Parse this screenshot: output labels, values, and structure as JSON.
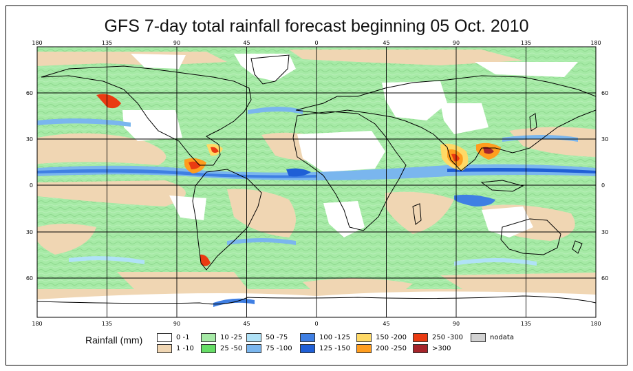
{
  "title": "GFS 7-day total rainfall forecast beginning 05 Oct. 2010",
  "lon_ticks": [
    "180",
    "135",
    "90",
    "45",
    "0",
    "45",
    "90",
    "135",
    "180"
  ],
  "lat_ticks": [
    "60",
    "30",
    "0",
    "30",
    "60"
  ],
  "legend": {
    "title": "Rainfall (mm)",
    "items": [
      {
        "label": "0 -1",
        "color": "#ffffff"
      },
      {
        "label": "1 -10",
        "color": "#f0d6b3"
      },
      {
        "label": "10 -25",
        "color": "#a6eaa6"
      },
      {
        "label": "25 -50",
        "color": "#66dd66"
      },
      {
        "label": "50 -75",
        "color": "#b0e2f7"
      },
      {
        "label": "75 -100",
        "color": "#7ab6ee"
      },
      {
        "label": "100 -125",
        "color": "#3f7fe3"
      },
      {
        "label": "125 -150",
        "color": "#1f5fd6"
      },
      {
        "label": "150 -200",
        "color": "#ffd966"
      },
      {
        "label": "200 -250",
        "color": "#ff9d1e"
      },
      {
        "label": "250 -300",
        "color": "#ea3b12"
      },
      {
        "label": ">300",
        "color": "#a6242a"
      },
      {
        "label": "nodata",
        "color": "#d2d2d2"
      }
    ]
  }
}
